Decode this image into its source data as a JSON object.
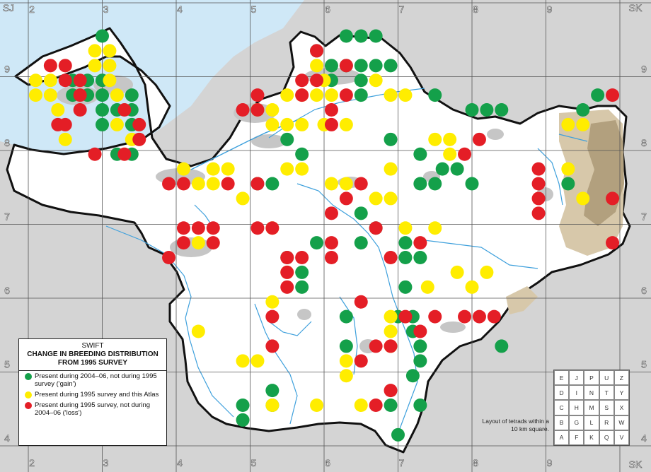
{
  "map": {
    "corner_labels": {
      "top_left": "SJ",
      "top_right": "SK",
      "bottom_right": "SK"
    },
    "easting_labels": [
      "2",
      "3",
      "4",
      "5",
      "6",
      "7",
      "8",
      "9"
    ],
    "northing_labels": [
      "9",
      "8",
      "7",
      "6",
      "5",
      "4"
    ],
    "colors": {
      "sea": "#cfe8f7",
      "land_outside": "#d4d4d4",
      "county": "#ffffff",
      "urban": "#c6c6c6",
      "upland_light": "#d7c8aa",
      "upland_dark": "#b2a07e",
      "river": "#3ea0dc",
      "grid": "#555555",
      "boundary": "#111111",
      "gain": "#14a04a",
      "present_both": "#ffed00",
      "loss": "#e41e26"
    }
  },
  "legend": {
    "species": "SWIFT",
    "heading_line1": "CHANGE IN BREEDING DISTRIBUTION",
    "heading_line2": "FROM 1995 SURVEY",
    "entries": [
      {
        "key": "gain",
        "text": "Present during 2004–06, not during 1995 survey ('gain')"
      },
      {
        "key": "present_both",
        "text": "Present during 1995 survey and this Atlas"
      },
      {
        "key": "loss",
        "text": "Present during 1995 survey, not during 2004–06 ('loss')"
      }
    ]
  },
  "tetrad_key": {
    "caption": "Layout of tetrads within a 10 km square.",
    "rows": [
      [
        "E",
        "J",
        "P",
        "U",
        "Z"
      ],
      [
        "D",
        "I",
        "N",
        "T",
        "Y"
      ],
      [
        "C",
        "H",
        "M",
        "S",
        "X"
      ],
      [
        "B",
        "G",
        "L",
        "R",
        "W"
      ],
      [
        "A",
        "F",
        "K",
        "Q",
        "V"
      ]
    ]
  },
  "records": {
    "gain": [
      [
        3.0,
        9.5
      ],
      [
        6.3,
        9.5
      ],
      [
        6.5,
        9.5
      ],
      [
        6.7,
        9.5
      ],
      [
        5.9,
        9.3
      ],
      [
        6.9,
        9.1
      ],
      [
        3.0,
        8.9
      ],
      [
        6.1,
        9.1
      ],
      [
        6.3,
        9.1
      ],
      [
        6.5,
        9.1
      ],
      [
        6.7,
        9.1
      ],
      [
        2.8,
        8.9
      ],
      [
        2.6,
        8.9
      ],
      [
        2.8,
        8.7
      ],
      [
        2.6,
        8.7
      ],
      [
        3.0,
        8.7
      ],
      [
        3.4,
        8.7
      ],
      [
        6.1,
        8.9
      ],
      [
        6.5,
        8.9
      ],
      [
        3.0,
        8.5
      ],
      [
        3.2,
        8.5
      ],
      [
        3.4,
        8.5
      ],
      [
        6.5,
        8.7
      ],
      [
        3.0,
        8.3
      ],
      [
        3.4,
        8.3
      ],
      [
        7.5,
        8.7
      ],
      [
        8.0,
        8.5
      ],
      [
        8.2,
        8.5
      ],
      [
        8.4,
        8.5
      ],
      [
        9.5,
        8.5
      ],
      [
        9.7,
        8.7
      ],
      [
        5.5,
        8.1
      ],
      [
        6.9,
        8.1
      ],
      [
        3.2,
        7.9
      ],
      [
        3.4,
        7.9
      ],
      [
        5.7,
        7.9
      ],
      [
        7.3,
        7.9
      ],
      [
        7.6,
        7.7
      ],
      [
        7.8,
        7.7
      ],
      [
        8.0,
        7.5
      ],
      [
        5.1,
        7.5
      ],
      [
        5.3,
        7.5
      ],
      [
        7.3,
        7.5
      ],
      [
        7.5,
        7.5
      ],
      [
        9.3,
        7.5
      ],
      [
        6.5,
        7.1
      ],
      [
        6.7,
        6.9
      ],
      [
        6.5,
        6.7
      ],
      [
        5.9,
        6.7
      ],
      [
        5.5,
        6.5
      ],
      [
        5.7,
        6.3
      ],
      [
        7.1,
        6.7
      ],
      [
        7.1,
        6.5
      ],
      [
        7.3,
        6.5
      ],
      [
        5.7,
        6.1
      ],
      [
        7.1,
        6.1
      ],
      [
        6.3,
        5.7
      ],
      [
        7.0,
        5.7
      ],
      [
        7.2,
        5.7
      ],
      [
        7.2,
        5.5
      ],
      [
        8.4,
        5.3
      ],
      [
        6.3,
        5.3
      ],
      [
        7.3,
        5.3
      ],
      [
        7.3,
        5.1
      ],
      [
        7.2,
        4.9
      ],
      [
        5.3,
        4.7
      ],
      [
        4.9,
        4.5
      ],
      [
        5.3,
        4.5
      ],
      [
        6.9,
        4.5
      ],
      [
        7.3,
        4.5
      ],
      [
        4.9,
        4.3
      ],
      [
        7.0,
        4.1
      ]
    ],
    "present_both": [
      [
        2.9,
        9.3
      ],
      [
        3.1,
        9.3
      ],
      [
        2.9,
        9.1
      ],
      [
        3.1,
        9.1
      ],
      [
        2.1,
        8.9
      ],
      [
        2.3,
        8.9
      ],
      [
        3.1,
        8.9
      ],
      [
        2.1,
        8.7
      ],
      [
        2.3,
        8.7
      ],
      [
        3.2,
        8.7
      ],
      [
        2.4,
        8.5
      ],
      [
        3.2,
        8.3
      ],
      [
        3.4,
        8.1
      ],
      [
        5.9,
        9.1
      ],
      [
        6.0,
        8.9
      ],
      [
        6.1,
        8.7
      ],
      [
        6.7,
        8.9
      ],
      [
        6.9,
        8.7
      ],
      [
        5.7,
        8.7
      ],
      [
        5.9,
        8.7
      ],
      [
        7.1,
        8.7
      ],
      [
        5.1,
        8.5
      ],
      [
        5.3,
        8.5
      ],
      [
        5.5,
        8.7
      ],
      [
        5.3,
        8.3
      ],
      [
        5.5,
        8.3
      ],
      [
        5.7,
        8.3
      ],
      [
        6.0,
        8.3
      ],
      [
        6.3,
        8.3
      ],
      [
        2.5,
        8.1
      ],
      [
        7.5,
        8.1
      ],
      [
        7.7,
        8.1
      ],
      [
        7.7,
        7.9
      ],
      [
        9.3,
        8.3
      ],
      [
        9.5,
        8.3
      ],
      [
        4.1,
        7.7
      ],
      [
        4.5,
        7.7
      ],
      [
        4.7,
        7.7
      ],
      [
        5.5,
        7.7
      ],
      [
        5.7,
        7.7
      ],
      [
        6.9,
        7.7
      ],
      [
        4.3,
        7.5
      ],
      [
        4.5,
        7.5
      ],
      [
        4.9,
        7.3
      ],
      [
        6.1,
        7.5
      ],
      [
        6.3,
        7.5
      ],
      [
        6.7,
        7.3
      ],
      [
        6.9,
        7.3
      ],
      [
        9.5,
        7.3
      ],
      [
        9.3,
        7.7
      ],
      [
        5.3,
        6.9
      ],
      [
        4.3,
        6.7
      ],
      [
        5.5,
        6.3
      ],
      [
        7.1,
        6.9
      ],
      [
        7.5,
        6.9
      ],
      [
        7.8,
        6.3
      ],
      [
        7.4,
        6.1
      ],
      [
        8.0,
        6.1
      ],
      [
        8.2,
        6.3
      ],
      [
        5.3,
        5.9
      ],
      [
        6.9,
        5.7
      ],
      [
        6.9,
        5.5
      ],
      [
        6.9,
        5.3
      ],
      [
        6.3,
        5.1
      ],
      [
        6.3,
        4.9
      ],
      [
        4.3,
        5.5
      ],
      [
        4.9,
        5.1
      ],
      [
        5.1,
        5.1
      ],
      [
        5.3,
        4.5
      ],
      [
        6.5,
        4.5
      ],
      [
        5.9,
        4.5
      ]
    ],
    "loss": [
      [
        2.5,
        9.1
      ],
      [
        2.3,
        9.1
      ],
      [
        2.5,
        8.9
      ],
      [
        2.7,
        8.9
      ],
      [
        2.7,
        8.7
      ],
      [
        2.7,
        8.5
      ],
      [
        2.4,
        8.3
      ],
      [
        3.3,
        8.5
      ],
      [
        3.5,
        8.3
      ],
      [
        3.5,
        8.1
      ],
      [
        2.5,
        8.3
      ],
      [
        2.9,
        7.9
      ],
      [
        3.3,
        7.9
      ],
      [
        5.9,
        9.3
      ],
      [
        6.3,
        9.1
      ],
      [
        5.7,
        8.9
      ],
      [
        5.9,
        8.9
      ],
      [
        5.7,
        8.7
      ],
      [
        6.3,
        8.7
      ],
      [
        5.1,
        8.7
      ],
      [
        4.9,
        8.5
      ],
      [
        5.1,
        8.5
      ],
      [
        6.1,
        8.5
      ],
      [
        6.1,
        8.3
      ],
      [
        8.1,
        8.1
      ],
      [
        9.9,
        8.7
      ],
      [
        7.9,
        7.9
      ],
      [
        8.9,
        7.7
      ],
      [
        8.9,
        7.5
      ],
      [
        8.9,
        7.3
      ],
      [
        8.9,
        7.1
      ],
      [
        9.9,
        7.3
      ],
      [
        9.9,
        6.7
      ],
      [
        3.9,
        7.5
      ],
      [
        4.1,
        7.5
      ],
      [
        4.7,
        7.5
      ],
      [
        5.1,
        7.5
      ],
      [
        6.5,
        7.5
      ],
      [
        6.3,
        7.3
      ],
      [
        6.1,
        7.1
      ],
      [
        4.1,
        6.9
      ],
      [
        4.3,
        6.9
      ],
      [
        4.5,
        6.9
      ],
      [
        4.1,
        6.7
      ],
      [
        4.5,
        6.7
      ],
      [
        3.9,
        6.5
      ],
      [
        5.1,
        6.9
      ],
      [
        5.3,
        6.9
      ],
      [
        5.5,
        6.5
      ],
      [
        5.5,
        6.3
      ],
      [
        5.5,
        6.1
      ],
      [
        5.7,
        6.5
      ],
      [
        6.1,
        6.7
      ],
      [
        6.1,
        6.5
      ],
      [
        6.9,
        6.5
      ],
      [
        6.7,
        6.9
      ],
      [
        7.3,
        6.7
      ],
      [
        7.1,
        5.7
      ],
      [
        7.5,
        5.7
      ],
      [
        7.3,
        5.5
      ],
      [
        7.9,
        5.7
      ],
      [
        8.1,
        5.7
      ],
      [
        8.3,
        5.7
      ],
      [
        6.7,
        5.3
      ],
      [
        6.5,
        5.1
      ],
      [
        6.9,
        5.3
      ],
      [
        5.3,
        5.7
      ],
      [
        5.3,
        5.3
      ],
      [
        6.5,
        5.9
      ],
      [
        6.9,
        4.7
      ],
      [
        6.7,
        4.5
      ]
    ]
  }
}
